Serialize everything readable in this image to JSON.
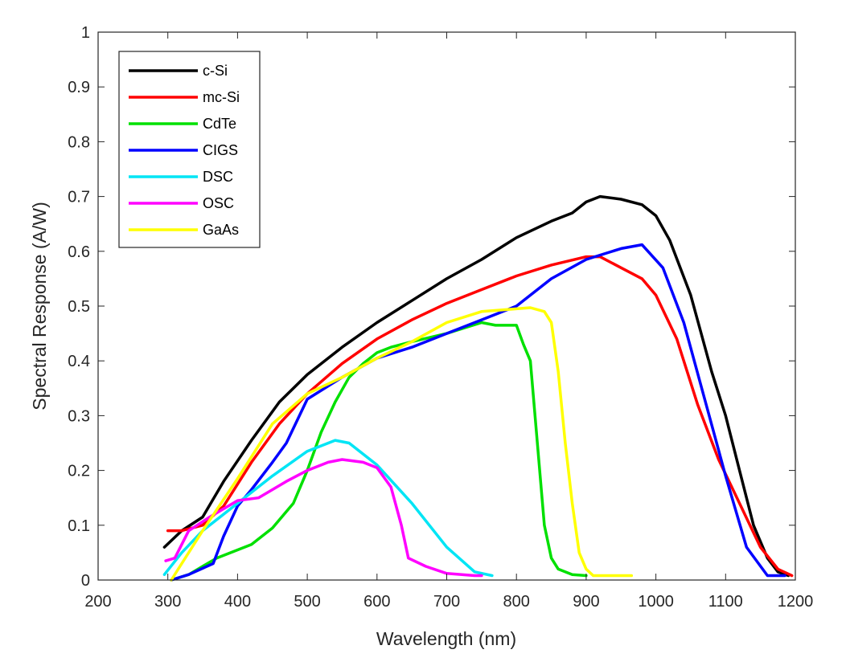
{
  "chart_data": {
    "type": "line",
    "title": "",
    "xlabel": "Wavelength (nm)",
    "ylabel": "Spectral Response (A/W)",
    "xlim": [
      200,
      1200
    ],
    "ylim": [
      0,
      1
    ],
    "xticks": [
      200,
      300,
      400,
      500,
      600,
      700,
      800,
      900,
      1000,
      1100,
      1200
    ],
    "yticks": [
      0,
      0.1,
      0.2,
      0.3,
      0.4,
      0.5,
      0.6,
      0.7,
      0.8,
      0.9,
      1
    ],
    "xtick_labels": [
      "200",
      "300",
      "400",
      "500",
      "600",
      "700",
      "800",
      "900",
      "1000",
      "1100",
      "1200"
    ],
    "ytick_labels": [
      "0",
      "0.1",
      "0.2",
      "0.3",
      "0.4",
      "0.5",
      "0.6",
      "0.7",
      "0.8",
      "0.9",
      "1"
    ],
    "grid": false,
    "legend_position": "top-left",
    "series": [
      {
        "name": "c-Si",
        "color": "#000000",
        "x": [
          295,
          320,
          350,
          380,
          420,
          460,
          500,
          550,
          600,
          650,
          700,
          750,
          800,
          850,
          880,
          900,
          920,
          950,
          980,
          1000,
          1020,
          1050,
          1080,
          1100,
          1120,
          1140,
          1160,
          1175,
          1190
        ],
        "y": [
          0.06,
          0.09,
          0.115,
          0.18,
          0.255,
          0.325,
          0.375,
          0.425,
          0.47,
          0.51,
          0.55,
          0.585,
          0.625,
          0.655,
          0.67,
          0.69,
          0.7,
          0.695,
          0.685,
          0.665,
          0.62,
          0.52,
          0.38,
          0.3,
          0.2,
          0.1,
          0.04,
          0.015,
          0.008
        ]
      },
      {
        "name": "mc-Si",
        "color": "#ff0000",
        "x": [
          300,
          320,
          350,
          380,
          420,
          460,
          500,
          550,
          600,
          650,
          700,
          750,
          800,
          850,
          900,
          920,
          950,
          980,
          1000,
          1030,
          1060,
          1090,
          1120,
          1150,
          1175,
          1195
        ],
        "y": [
          0.09,
          0.09,
          0.1,
          0.135,
          0.215,
          0.285,
          0.34,
          0.395,
          0.44,
          0.475,
          0.505,
          0.53,
          0.555,
          0.575,
          0.59,
          0.59,
          0.57,
          0.55,
          0.52,
          0.44,
          0.32,
          0.22,
          0.14,
          0.06,
          0.02,
          0.008
        ]
      },
      {
        "name": "CdTe",
        "color": "#00e000",
        "x": [
          305,
          330,
          370,
          420,
          450,
          480,
          500,
          520,
          540,
          560,
          580,
          600,
          620,
          650,
          700,
          750,
          770,
          800,
          810,
          820,
          830,
          840,
          850,
          860,
          880,
          900
        ],
        "y": [
          0.0,
          0.01,
          0.04,
          0.065,
          0.095,
          0.14,
          0.2,
          0.27,
          0.325,
          0.37,
          0.395,
          0.415,
          0.425,
          0.435,
          0.45,
          0.47,
          0.465,
          0.465,
          0.43,
          0.4,
          0.25,
          0.1,
          0.04,
          0.02,
          0.01,
          0.008
        ]
      },
      {
        "name": "CIGS",
        "color": "#0000ff",
        "x": [
          305,
          330,
          365,
          380,
          400,
          420,
          450,
          470,
          500,
          550,
          600,
          650,
          700,
          750,
          800,
          850,
          900,
          950,
          980,
          1010,
          1040,
          1070,
          1100,
          1130,
          1160,
          1185
        ],
        "y": [
          0.0,
          0.01,
          0.03,
          0.08,
          0.135,
          0.165,
          0.215,
          0.25,
          0.33,
          0.37,
          0.405,
          0.425,
          0.45,
          0.475,
          0.5,
          0.55,
          0.585,
          0.605,
          0.612,
          0.57,
          0.47,
          0.33,
          0.19,
          0.06,
          0.008,
          0.008
        ]
      },
      {
        "name": "DSC",
        "color": "#00e5f5",
        "x": [
          295,
          320,
          350,
          400,
          450,
          500,
          540,
          560,
          600,
          650,
          700,
          740,
          765
        ],
        "y": [
          0.01,
          0.05,
          0.09,
          0.14,
          0.19,
          0.235,
          0.255,
          0.25,
          0.21,
          0.14,
          0.06,
          0.015,
          0.008
        ]
      },
      {
        "name": "OSC",
        "color": "#ff00ff",
        "x": [
          297,
          310,
          330,
          360,
          400,
          430,
          470,
          500,
          530,
          550,
          580,
          600,
          620,
          635,
          645,
          670,
          700,
          740,
          750
        ],
        "y": [
          0.035,
          0.04,
          0.09,
          0.115,
          0.145,
          0.15,
          0.18,
          0.2,
          0.215,
          0.22,
          0.215,
          0.205,
          0.17,
          0.1,
          0.04,
          0.025,
          0.012,
          0.008,
          0.008
        ]
      },
      {
        "name": "GaAs",
        "color": "#ffff00",
        "x": [
          305,
          320,
          350,
          400,
          450,
          500,
          550,
          600,
          650,
          700,
          750,
          800,
          820,
          840,
          850,
          860,
          870,
          880,
          890,
          900,
          910,
          940,
          965
        ],
        "y": [
          0.0,
          0.03,
          0.09,
          0.185,
          0.285,
          0.34,
          0.37,
          0.405,
          0.435,
          0.47,
          0.49,
          0.495,
          0.497,
          0.49,
          0.47,
          0.38,
          0.25,
          0.14,
          0.05,
          0.02,
          0.008,
          0.008,
          0.008
        ]
      }
    ]
  }
}
